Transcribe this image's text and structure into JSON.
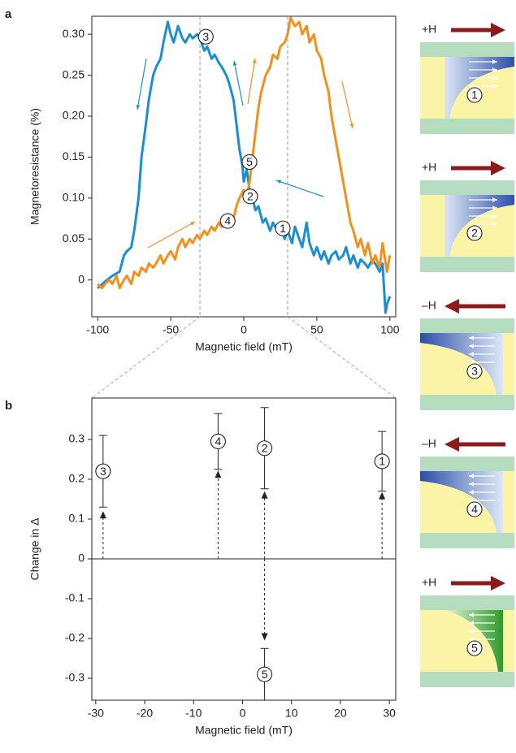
{
  "chart_data": [
    {
      "type": "line",
      "panel": "a",
      "x_label": "Magnetic field (mT)",
      "y_label": "Magnetoresistance (%)",
      "xlim": [
        -104,
        104
      ],
      "ylim": [
        -0.045,
        0.322
      ],
      "xticks": [
        -100,
        -50,
        0,
        50,
        100
      ],
      "yticks": [
        0,
        0.05,
        {
          "value": 0.1,
          "label": "0.10"
        },
        0.15,
        {
          "value": 0.2,
          "label": "0.20"
        },
        0.25,
        {
          "value": 0.3,
          "label": "0.30"
        }
      ],
      "markers": [
        -30,
        30
      ],
      "annotations": [
        "1",
        "2",
        "3",
        "4",
        "5"
      ],
      "series": [
        {
          "color": "#1a8fd0",
          "x": [
            -100,
            -95,
            -90,
            -85,
            -82,
            -80,
            -77,
            -75,
            -72,
            -70,
            -67,
            -65,
            -62,
            -60,
            -57,
            -55,
            -52,
            -50,
            -48,
            -45,
            -42,
            -40,
            -37,
            -35,
            -32,
            -30,
            -27,
            -25,
            -22,
            -20,
            -17,
            -15,
            -12,
            -10,
            -7,
            -5,
            -3,
            -1,
            0,
            2,
            4,
            6,
            8,
            10,
            13,
            15,
            18,
            20,
            23,
            25,
            28,
            30,
            33,
            35,
            38,
            40,
            43,
            45,
            48,
            50,
            53,
            55,
            58,
            60,
            63,
            65,
            68,
            70,
            73,
            75,
            78,
            80,
            83,
            85,
            88,
            90,
            93,
            95,
            97,
            98,
            100
          ],
          "values": [
            -0.01,
            -0.002,
            0.005,
            0.01,
            0.03,
            0.035,
            0.04,
            0.06,
            0.1,
            0.15,
            0.19,
            0.22,
            0.25,
            0.26,
            0.27,
            0.29,
            0.315,
            0.3,
            0.29,
            0.31,
            0.295,
            0.29,
            0.3,
            0.295,
            0.3,
            0.295,
            0.28,
            0.285,
            0.27,
            0.275,
            0.265,
            0.26,
            0.25,
            0.24,
            0.22,
            0.19,
            0.16,
            0.14,
            0.12,
            0.135,
            0.11,
            0.1,
            0.085,
            0.09,
            0.07,
            0.075,
            0.06,
            0.07,
            0.06,
            0.065,
            0.05,
            0.06,
            0.045,
            0.065,
            0.05,
            0.04,
            0.07,
            0.045,
            0.03,
            0.04,
            0.025,
            0.035,
            0.02,
            0.03,
            0.035,
            0.025,
            0.03,
            0.04,
            0.02,
            0.03,
            0.015,
            0.025,
            0.02,
            0.015,
            0.025,
            0.02,
            0.01,
            0.02,
            -0.04,
            -0.03,
            -0.02
          ]
        },
        {
          "color": "#f0901e",
          "x": [
            -100,
            -97,
            -95,
            -92,
            -90,
            -87,
            -85,
            -82,
            -80,
            -77,
            -75,
            -72,
            -70,
            -67,
            -65,
            -62,
            -60,
            -57,
            -55,
            -52,
            -50,
            -47,
            -45,
            -42,
            -40,
            -37,
            -35,
            -32,
            -30,
            -27,
            -25,
            -22,
            -20,
            -17,
            -15,
            -12,
            -10,
            -7,
            -5,
            -3,
            0,
            2,
            4,
            6,
            8,
            10,
            12,
            15,
            18,
            20,
            23,
            25,
            28,
            30,
            32,
            35,
            38,
            40,
            43,
            45,
            48,
            50,
            53,
            55,
            58,
            60,
            63,
            65,
            68,
            70,
            73,
            75,
            78,
            80,
            83,
            85,
            88,
            90,
            93,
            95,
            98,
            100
          ],
          "values": [
            -0.005,
            -0.01,
            -0.005,
            0.0,
            -0.005,
            0.005,
            -0.01,
            0.0,
            0.005,
            -0.005,
            0.01,
            0.005,
            0.015,
            0.01,
            0.02,
            0.015,
            0.02,
            0.03,
            0.02,
            0.03,
            0.035,
            0.025,
            0.04,
            0.05,
            0.04,
            0.05,
            0.045,
            0.055,
            0.05,
            0.06,
            0.055,
            0.065,
            0.06,
            0.07,
            0.065,
            0.07,
            0.08,
            0.075,
            0.09,
            0.1,
            0.11,
            0.1,
            0.12,
            0.15,
            0.18,
            0.21,
            0.23,
            0.25,
            0.26,
            0.275,
            0.27,
            0.285,
            0.29,
            0.3,
            0.32,
            0.31,
            0.315,
            0.3,
            0.31,
            0.29,
            0.3,
            0.28,
            0.27,
            0.25,
            0.23,
            0.2,
            0.17,
            0.15,
            0.12,
            0.1,
            0.07,
            0.06,
            0.04,
            0.05,
            0.03,
            0.045,
            0.02,
            0.03,
            0.015,
            0.045,
            0.01,
            0.03
          ]
        }
      ]
    },
    {
      "type": "scatter",
      "panel": "b",
      "x_label": "Magnetic field (mT)",
      "y_label": "Change in Δ",
      "xlim": [
        -30.8,
        31.3
      ],
      "ylim": [
        -0.355,
        0.404
      ],
      "xticks": [
        -30,
        -20,
        -10,
        0,
        10,
        20,
        30
      ],
      "yticks": [
        -0.3,
        -0.2,
        -0.1,
        0,
        0.1,
        0.2,
        0.3
      ],
      "series": [
        {
          "x": [
            -28.5,
            -5,
            4.5,
            28.5,
            4.5
          ],
          "values": [
            0.22,
            0.295,
            0.278,
            0.245,
            -0.29
          ],
          "errors": [
            0.09,
            0.07,
            0.102,
            0.075,
            0.065
          ],
          "arrow_tips": [
            0.12,
            0.222,
            0.17,
            0.168,
            -0.205
          ],
          "labels": [
            "3",
            "4",
            "2",
            "1",
            "5"
          ]
        }
      ]
    }
  ],
  "diagrams": [
    {
      "field": "+H",
      "state": "1"
    },
    {
      "field": "+H",
      "state": "2"
    },
    {
      "field": "–H",
      "state": "3"
    },
    {
      "field": "–H",
      "state": "4"
    },
    {
      "field": "+H",
      "state": "5"
    }
  ]
}
